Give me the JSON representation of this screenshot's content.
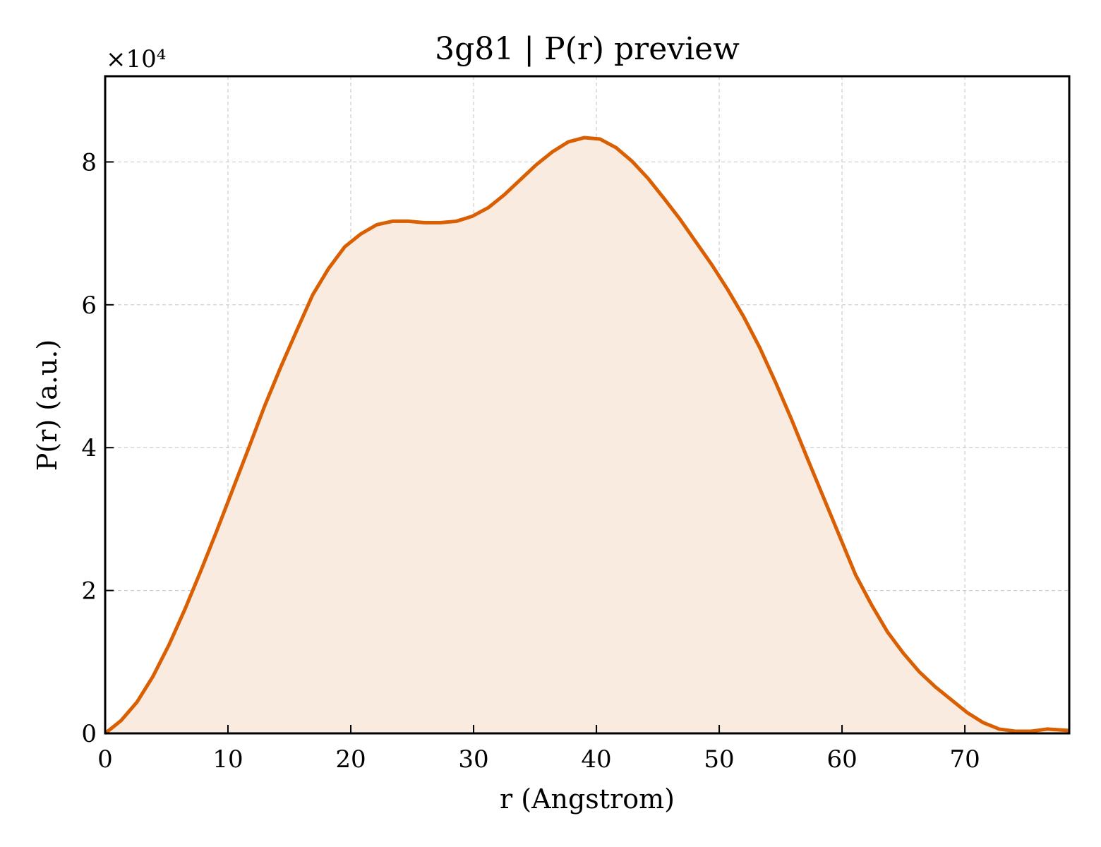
{
  "chart_data": {
    "type": "area",
    "title": "3g81 | P(r) preview",
    "xlabel": "r (Angstrom)",
    "ylabel": "P(r) (a.u.)",
    "y_offset_label": "×10⁴",
    "y_scale_factor": 10000,
    "xlim": [
      0,
      78.5
    ],
    "ylim": [
      0,
      9.2
    ],
    "x_ticks": [
      0,
      10,
      20,
      30,
      40,
      50,
      60,
      70
    ],
    "y_ticks": [
      0,
      2,
      4,
      6,
      8
    ],
    "grid": true,
    "legend": "none",
    "colors": {
      "line": "#d95f02",
      "fill": "#f9ebdf"
    },
    "series": [
      {
        "x": [
          0,
          1.3,
          2.6,
          3.9,
          5.2,
          6.5,
          7.8,
          9.1,
          10.4,
          11.7,
          13.0,
          14.3,
          15.6,
          16.9,
          18.2,
          19.5,
          20.8,
          22.1,
          23.4,
          24.7,
          26.0,
          27.3,
          28.6,
          29.9,
          31.2,
          32.5,
          33.8,
          35.1,
          36.4,
          37.7,
          39.0,
          40.3,
          41.6,
          42.9,
          44.2,
          45.5,
          46.8,
          48.1,
          49.4,
          50.7,
          52.0,
          53.3,
          54.6,
          55.9,
          57.2,
          58.5,
          59.8,
          61.1,
          62.4,
          63.7,
          65.0,
          66.3,
          67.6,
          68.9,
          70.2,
          71.5,
          72.8,
          74.1,
          75.4,
          76.7,
          78.5
        ],
        "y": [
          0,
          0.18,
          0.44,
          0.8,
          1.24,
          1.74,
          2.28,
          2.84,
          3.42,
          4.0,
          4.59,
          5.13,
          5.64,
          6.14,
          6.51,
          6.81,
          6.99,
          7.12,
          7.17,
          7.17,
          7.15,
          7.15,
          7.17,
          7.24,
          7.36,
          7.54,
          7.75,
          7.96,
          8.14,
          8.28,
          8.34,
          8.32,
          8.2,
          8.01,
          7.77,
          7.49,
          7.2,
          6.88,
          6.56,
          6.21,
          5.83,
          5.4,
          4.91,
          4.39,
          3.84,
          3.3,
          2.76,
          2.22,
          1.8,
          1.42,
          1.12,
          0.86,
          0.65,
          0.47,
          0.29,
          0.15,
          0.06,
          0.03,
          0.03,
          0.06,
          0.04
        ]
      }
    ]
  }
}
